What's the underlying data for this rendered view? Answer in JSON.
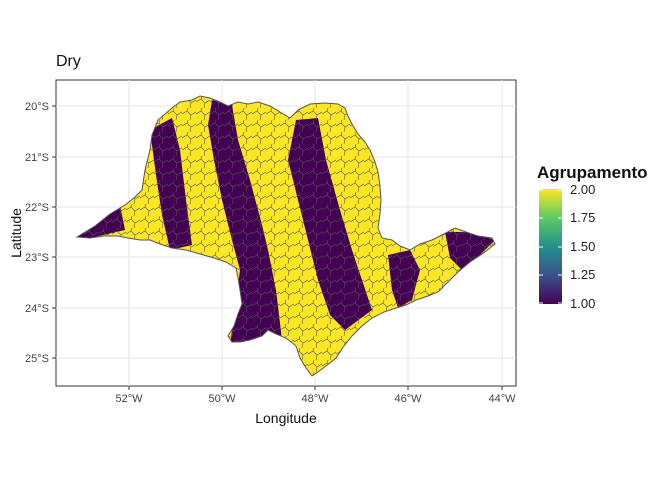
{
  "map": {
    "title": "Dry",
    "xlabel": "Longitude",
    "ylabel": "Latitude",
    "x_ticks": [
      "52°W",
      "50°W",
      "48°W",
      "46°W",
      "44°W"
    ],
    "y_ticks": [
      "20°S",
      "21°S",
      "22°S",
      "23°S",
      "24°S",
      "25°S"
    ],
    "region": "São Paulo state municipalities",
    "grid": true
  },
  "legend": {
    "title": "Agrupamento",
    "labels": [
      "2.00",
      "1.75",
      "1.50",
      "1.25",
      "1.00"
    ],
    "colors": [
      "#fde725",
      "#5ec962",
      "#21918c",
      "#3b528b",
      "#440154"
    ]
  },
  "colors": {
    "cluster_1": "#440154",
    "cluster_2": "#fde725",
    "border": "#555555"
  }
}
